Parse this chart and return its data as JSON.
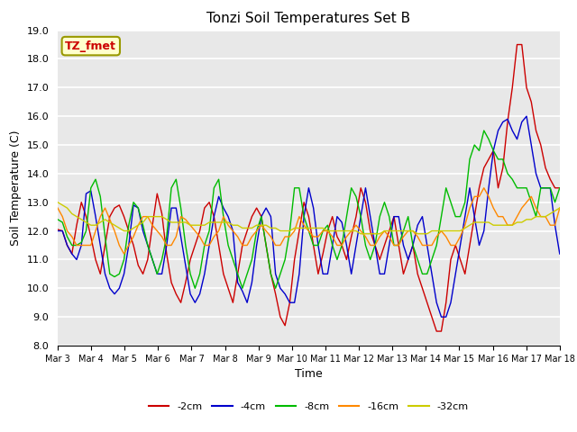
{
  "title": "Tonzi Soil Temperatures Set B",
  "xlabel": "Time",
  "ylabel": "Soil Temperature (C)",
  "ylim": [
    8.0,
    19.0
  ],
  "yticks": [
    8.0,
    9.0,
    10.0,
    11.0,
    12.0,
    13.0,
    14.0,
    15.0,
    16.0,
    17.0,
    18.0,
    19.0
  ],
  "xtick_labels": [
    "Mar 3",
    "Mar 4",
    "Mar 5",
    "Mar 6",
    "Mar 7",
    "Mar 8",
    "Mar 9",
    "Mar 10",
    "Mar 11",
    "Mar 12",
    "Mar 13",
    "Mar 14",
    "Mar 15",
    "Mar 16",
    "Mar 17",
    "Mar 18"
  ],
  "series_colors": [
    "#cc0000",
    "#0000cc",
    "#00bb00",
    "#ff8800",
    "#cccc00"
  ],
  "series_labels": [
    "-2cm",
    "-4cm",
    "-8cm",
    "-16cm",
    "-32cm"
  ],
  "annotation_label": "TZ_fmet",
  "annotation_color": "#cc0000",
  "annotation_bg": "#ffffcc",
  "plot_bg": "#e8e8e8",
  "grid_color": "#ffffff",
  "t2cm": [
    12.05,
    12.0,
    11.5,
    11.2,
    12.2,
    13.0,
    12.5,
    11.8,
    11.0,
    10.5,
    11.5,
    12.5,
    12.8,
    12.9,
    12.5,
    12.0,
    11.5,
    10.8,
    10.5,
    11.0,
    12.2,
    13.3,
    12.6,
    11.2,
    10.2,
    9.8,
    9.5,
    10.2,
    11.0,
    11.5,
    12.0,
    12.8,
    13.0,
    12.5,
    11.5,
    10.5,
    10.0,
    9.5,
    10.5,
    11.5,
    12.0,
    12.5,
    12.8,
    12.5,
    11.5,
    10.5,
    9.8,
    9.0,
    8.7,
    9.5,
    11.0,
    12.0,
    13.0,
    12.5,
    11.5,
    10.5,
    11.2,
    12.0,
    12.5,
    11.8,
    11.5,
    11.0,
    11.8,
    12.5,
    13.5,
    13.0,
    12.0,
    11.5,
    11.0,
    11.5,
    12.0,
    12.5,
    11.5,
    10.5,
    11.0,
    11.5,
    10.5,
    10.0,
    9.5,
    9.0,
    8.5,
    8.5,
    9.5,
    11.0,
    11.5,
    11.0,
    10.5,
    11.5,
    12.5,
    13.5,
    14.2,
    14.5,
    14.8,
    13.5,
    14.2,
    15.8,
    17.0,
    18.5,
    18.5,
    17.0,
    16.5,
    15.5,
    15.0,
    14.2,
    13.8,
    13.5,
    13.5
  ],
  "t4cm": [
    12.0,
    12.0,
    11.5,
    11.2,
    11.0,
    11.5,
    13.3,
    13.4,
    12.5,
    11.5,
    10.5,
    10.0,
    9.8,
    10.0,
    10.5,
    11.5,
    12.9,
    12.8,
    12.0,
    11.5,
    11.0,
    10.5,
    10.5,
    11.5,
    12.8,
    12.8,
    11.8,
    10.8,
    9.8,
    9.5,
    9.8,
    10.5,
    11.5,
    12.5,
    13.2,
    12.8,
    12.5,
    12.0,
    10.2,
    9.9,
    9.5,
    10.2,
    11.5,
    12.5,
    12.8,
    12.5,
    10.5,
    10.0,
    9.8,
    9.5,
    9.5,
    10.5,
    12.5,
    13.5,
    12.8,
    11.5,
    10.5,
    10.5,
    11.5,
    12.5,
    12.3,
    11.5,
    10.5,
    11.5,
    12.5,
    13.5,
    12.5,
    11.5,
    10.5,
    10.5,
    11.5,
    12.5,
    12.5,
    11.5,
    11.0,
    11.5,
    12.2,
    12.5,
    11.5,
    10.5,
    9.5,
    9.0,
    9.0,
    9.5,
    10.5,
    11.5,
    12.5,
    13.5,
    12.5,
    11.5,
    12.0,
    13.5,
    14.8,
    15.5,
    15.8,
    15.9,
    15.5,
    15.2,
    15.8,
    16.0,
    15.0,
    14.0,
    13.5,
    13.5,
    13.5,
    12.2,
    11.2
  ],
  "t8cm": [
    12.4,
    12.3,
    11.8,
    11.5,
    11.5,
    11.6,
    12.0,
    13.5,
    13.8,
    13.2,
    11.8,
    10.5,
    10.4,
    10.5,
    11.0,
    12.2,
    13.0,
    12.8,
    12.2,
    11.5,
    11.0,
    10.5,
    11.0,
    11.8,
    13.5,
    13.8,
    12.8,
    11.5,
    10.5,
    10.0,
    10.5,
    11.5,
    12.0,
    13.5,
    13.8,
    12.5,
    11.5,
    11.0,
    10.5,
    10.0,
    10.5,
    11.0,
    12.0,
    12.5,
    11.5,
    10.5,
    10.0,
    10.5,
    11.0,
    12.0,
    13.5,
    13.5,
    12.5,
    12.0,
    11.5,
    11.5,
    12.0,
    12.2,
    11.5,
    11.0,
    11.5,
    12.5,
    13.5,
    13.2,
    12.5,
    11.5,
    11.0,
    11.5,
    12.5,
    13.0,
    12.5,
    11.5,
    11.5,
    12.0,
    12.5,
    11.5,
    11.0,
    10.5,
    10.5,
    11.0,
    11.5,
    12.5,
    13.5,
    13.0,
    12.5,
    12.5,
    13.0,
    14.5,
    15.0,
    14.8,
    15.5,
    15.2,
    14.8,
    14.5,
    14.5,
    14.0,
    13.8,
    13.5,
    13.5,
    13.5,
    13.0,
    12.5,
    13.5,
    13.5,
    13.5,
    13.0,
    13.5
  ],
  "t16cm": [
    12.8,
    12.5,
    12.0,
    11.8,
    11.5,
    11.5,
    11.5,
    11.5,
    12.0,
    12.5,
    12.8,
    12.4,
    12.0,
    11.5,
    11.2,
    11.5,
    11.8,
    12.2,
    12.5,
    12.5,
    12.2,
    12.0,
    11.8,
    11.5,
    11.5,
    11.8,
    12.5,
    12.4,
    12.2,
    12.0,
    11.8,
    11.5,
    11.5,
    11.8,
    12.0,
    12.5,
    12.2,
    12.0,
    11.8,
    11.5,
    11.5,
    11.8,
    12.0,
    12.2,
    12.0,
    11.8,
    11.5,
    11.5,
    11.8,
    11.8,
    12.0,
    12.5,
    12.2,
    12.0,
    11.8,
    11.8,
    12.0,
    12.0,
    11.8,
    11.5,
    11.5,
    11.8,
    12.0,
    12.2,
    12.0,
    11.8,
    11.5,
    11.5,
    11.8,
    12.0,
    11.8,
    11.5,
    11.5,
    11.8,
    12.0,
    12.0,
    11.8,
    11.5,
    11.5,
    11.5,
    11.8,
    12.0,
    11.8,
    11.5,
    11.5,
    11.8,
    12.2,
    12.8,
    13.2,
    13.2,
    13.5,
    13.2,
    12.8,
    12.5,
    12.5,
    12.2,
    12.2,
    12.5,
    12.8,
    13.0,
    13.2,
    12.8,
    12.5,
    12.5,
    12.2,
    12.2,
    12.8
  ],
  "t32cm": [
    13.0,
    12.9,
    12.8,
    12.6,
    12.5,
    12.4,
    12.3,
    12.2,
    12.2,
    12.3,
    12.4,
    12.3,
    12.2,
    12.1,
    12.0,
    12.0,
    12.1,
    12.2,
    12.3,
    12.5,
    12.5,
    12.5,
    12.5,
    12.4,
    12.3,
    12.3,
    12.3,
    12.3,
    12.2,
    12.2,
    12.2,
    12.2,
    12.3,
    12.3,
    12.3,
    12.3,
    12.3,
    12.2,
    12.2,
    12.1,
    12.1,
    12.1,
    12.2,
    12.2,
    12.2,
    12.1,
    12.1,
    12.0,
    12.0,
    12.0,
    12.1,
    12.1,
    12.1,
    12.1,
    12.1,
    12.1,
    12.1,
    12.0,
    12.0,
    12.0,
    12.0,
    12.0,
    12.0,
    12.0,
    11.9,
    11.9,
    11.9,
    11.9,
    11.9,
    12.0,
    12.0,
    12.0,
    12.0,
    12.0,
    12.0,
    12.0,
    11.9,
    11.9,
    11.9,
    12.0,
    12.0,
    12.0,
    12.0,
    12.0,
    12.0,
    12.0,
    12.1,
    12.2,
    12.3,
    12.3,
    12.3,
    12.3,
    12.2,
    12.2,
    12.2,
    12.2,
    12.2,
    12.3,
    12.3,
    12.4,
    12.4,
    12.5,
    12.5,
    12.5,
    12.6,
    12.7,
    12.8
  ]
}
